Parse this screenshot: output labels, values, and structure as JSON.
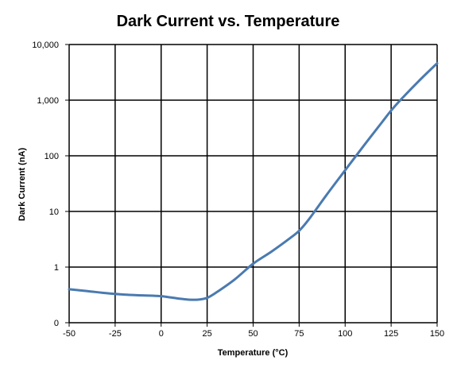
{
  "chart_data": {
    "type": "line",
    "title": "Dark Current vs. Temperature",
    "xlabel": "Temperature (°C)",
    "ylabel": "Dark Current (nA)",
    "xlim": [
      -50,
      150
    ],
    "x_ticks": [
      -50,
      -25,
      0,
      25,
      50,
      75,
      100,
      125,
      150
    ],
    "y_scale": "log",
    "y_ticks": [
      {
        "value": 0.1,
        "label": "0"
      },
      {
        "value": 1,
        "label": "1"
      },
      {
        "value": 10,
        "label": "10"
      },
      {
        "value": 100,
        "label": "100"
      },
      {
        "value": 1000,
        "label": "1,000"
      },
      {
        "value": 10000,
        "label": "10,000"
      }
    ],
    "ylim": [
      0.1,
      10000
    ],
    "grid": true,
    "line_color": "#4a7ab0",
    "series": [
      {
        "x": [
          -50,
          -40,
          -30,
          -20,
          -10,
          0,
          10,
          15,
          20,
          25,
          30,
          40,
          50,
          60,
          70,
          75,
          80,
          90,
          100,
          110,
          120,
          125,
          130,
          140,
          150
        ],
        "y": [
          0.4,
          0.37,
          0.34,
          0.32,
          0.31,
          0.3,
          0.27,
          0.26,
          0.26,
          0.28,
          0.35,
          0.6,
          1.15,
          1.9,
          3.3,
          4.5,
          7,
          20,
          55,
          150,
          400,
          650,
          1000,
          2200,
          4600
        ]
      }
    ]
  }
}
